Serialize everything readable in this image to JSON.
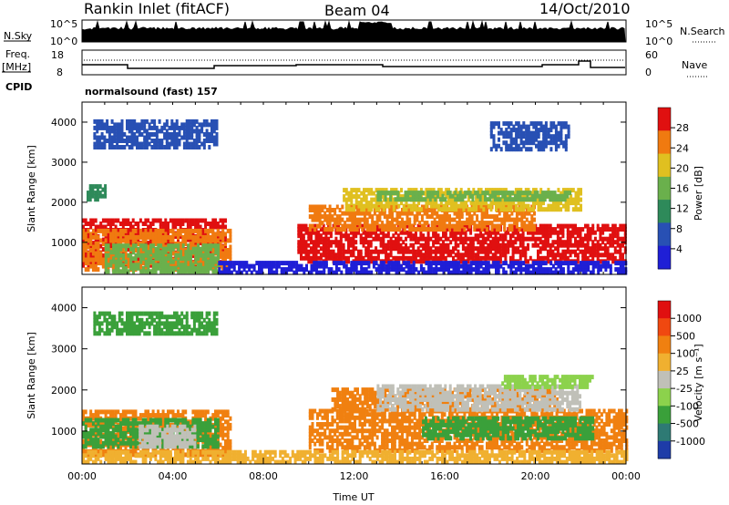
{
  "header": {
    "station": "Rankin Inlet (fitACF)",
    "beam": "Beam 04",
    "date": "14/Oct/2010"
  },
  "strip_labels": {
    "nsky": "N.Sky",
    "nsky_ticks": [
      "10^5",
      "10^0"
    ],
    "nsearch": "N.Search",
    "nsearch_ticks": [
      "10^5",
      "10^0"
    ],
    "freq": "Freq.",
    "freq_unit": "[MHz]",
    "freq_ticks": [
      "18",
      "8"
    ],
    "nave": "Nave",
    "nave_ticks": [
      "60",
      "0"
    ],
    "cpid": "CPID",
    "cpid_value": "normalsound (fast) 157"
  },
  "colors": {
    "power": [
      "#1f1fd6",
      "#2850b4",
      "#2e8a5a",
      "#6ab04c",
      "#e0c020",
      "#f07a10",
      "#e01010"
    ],
    "velocity": [
      "#1e3ca8",
      "#2e7a74",
      "#3aa03a",
      "#8cd24c",
      "#c0c0b8",
      "#f0b030",
      "#f08010",
      "#f04810",
      "#e01010"
    ]
  },
  "chart_data": [
    {
      "type": "heatmap",
      "name": "power",
      "ylabel": "Slant Range [km]",
      "xlim": [
        0,
        24
      ],
      "ylim": [
        200,
        4500
      ],
      "yticks": [
        1000,
        2000,
        3000,
        4000
      ],
      "colorbar_label": "Power [dB]",
      "colorbar_ticks": [
        "28",
        "24",
        "20",
        "16",
        "12",
        "8",
        "4"
      ],
      "bands": [
        {
          "t0": 0.0,
          "t1": 6.3,
          "r0": 400,
          "r1": 1600,
          "color": 6
        },
        {
          "t0": 0.0,
          "t1": 6.5,
          "r0": 300,
          "r1": 1300,
          "color": 5
        },
        {
          "t0": 1.0,
          "t1": 6.0,
          "r0": 250,
          "r1": 900,
          "color": 3
        },
        {
          "t0": 0.2,
          "t1": 1.0,
          "r0": 2050,
          "r1": 2450,
          "color": 2
        },
        {
          "t0": 0.5,
          "t1": 6.0,
          "r0": 3350,
          "r1": 4000,
          "color": 1
        },
        {
          "t0": 9.5,
          "t1": 24.0,
          "r0": 500,
          "r1": 1400,
          "color": 6
        },
        {
          "t0": 10.0,
          "t1": 20.0,
          "r0": 1300,
          "r1": 1900,
          "color": 5
        },
        {
          "t0": 11.5,
          "t1": 22.0,
          "r0": 1800,
          "r1": 2300,
          "color": 4
        },
        {
          "t0": 13.0,
          "t1": 21.5,
          "r0": 2050,
          "r1": 2250,
          "color": 3
        },
        {
          "t0": 18.0,
          "t1": 21.5,
          "r0": 3300,
          "r1": 4000,
          "color": 1
        },
        {
          "t0": 6.0,
          "t1": 24.0,
          "r0": 220,
          "r1": 500,
          "color": 0
        }
      ]
    },
    {
      "type": "heatmap",
      "name": "velocity",
      "xlabel": "Time UT",
      "ylabel": "Slant Range [km]",
      "xlim": [
        0,
        24
      ],
      "ylim": [
        200,
        4500
      ],
      "xticks": [
        "00:00",
        "04:00",
        "08:00",
        "12:00",
        "16:00",
        "20:00",
        "00:00"
      ],
      "yticks": [
        1000,
        2000,
        3000,
        4000
      ],
      "colorbar_label": "Velocity [m s⁻¹]",
      "colorbar_ticks": [
        "1000",
        "500",
        "100",
        "25",
        "-25",
        "-100",
        "-500",
        "-1000"
      ],
      "bands": [
        {
          "t0": 0.0,
          "t1": 6.5,
          "r0": 400,
          "r1": 1500,
          "color": 6
        },
        {
          "t0": 0.0,
          "t1": 6.0,
          "r0": 600,
          "r1": 1300,
          "color": 2
        },
        {
          "t0": 2.5,
          "t1": 5.0,
          "r0": 600,
          "r1": 1100,
          "color": 4
        },
        {
          "t0": 0.5,
          "t1": 6.0,
          "r0": 3350,
          "r1": 3900,
          "color": 2
        },
        {
          "t0": 10.0,
          "t1": 24.0,
          "r0": 500,
          "r1": 1500,
          "color": 6
        },
        {
          "t0": 11.0,
          "t1": 21.0,
          "r0": 1500,
          "r1": 2000,
          "color": 6
        },
        {
          "t0": 13.0,
          "t1": 22.0,
          "r0": 1500,
          "r1": 2100,
          "color": 4
        },
        {
          "t0": 15.0,
          "t1": 22.5,
          "r0": 800,
          "r1": 1300,
          "color": 2
        },
        {
          "t0": 18.5,
          "t1": 22.5,
          "r0": 2050,
          "r1": 2300,
          "color": 3
        },
        {
          "t0": 0.0,
          "t1": 24.0,
          "r0": 220,
          "r1": 500,
          "color": 5
        }
      ]
    }
  ]
}
